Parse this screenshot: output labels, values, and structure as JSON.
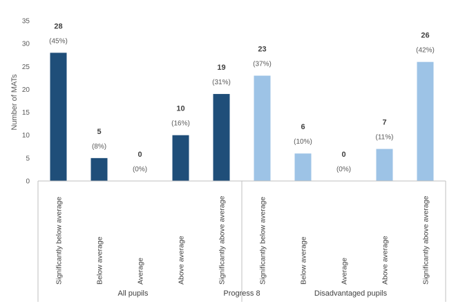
{
  "chart_data": {
    "type": "bar",
    "title": "",
    "ylabel": "Number of MATs",
    "xlabel": "Progress 8",
    "ylim": [
      0,
      35
    ],
    "yticks": [
      0,
      5,
      10,
      15,
      20,
      25,
      30,
      35
    ],
    "grid": false,
    "legend": "none",
    "groups": [
      {
        "name": "All pupils",
        "color": "#1f4e79",
        "categories": [
          "Significantly below average",
          "Below average",
          "Average",
          "Above average",
          "Significantly above average"
        ],
        "values": [
          28,
          5,
          0,
          10,
          19
        ],
        "value_labels": [
          "28",
          "5",
          "0",
          "10",
          "19"
        ],
        "percent_labels": [
          "(45%)",
          "(8%)",
          "(0%)",
          "(16%)",
          "(31%)"
        ]
      },
      {
        "name": "Disadvantaged pupils",
        "color": "#9dc3e6",
        "categories": [
          "Significantly below average",
          "Below average",
          "Average",
          "Above average",
          "Significantly above average"
        ],
        "values": [
          23,
          6,
          0,
          7,
          26
        ],
        "value_labels": [
          "23",
          "6",
          "0",
          "7",
          "26"
        ],
        "percent_labels": [
          "(37%)",
          "(10%)",
          "(0%)",
          "(11%)",
          "(42%)"
        ]
      }
    ]
  }
}
